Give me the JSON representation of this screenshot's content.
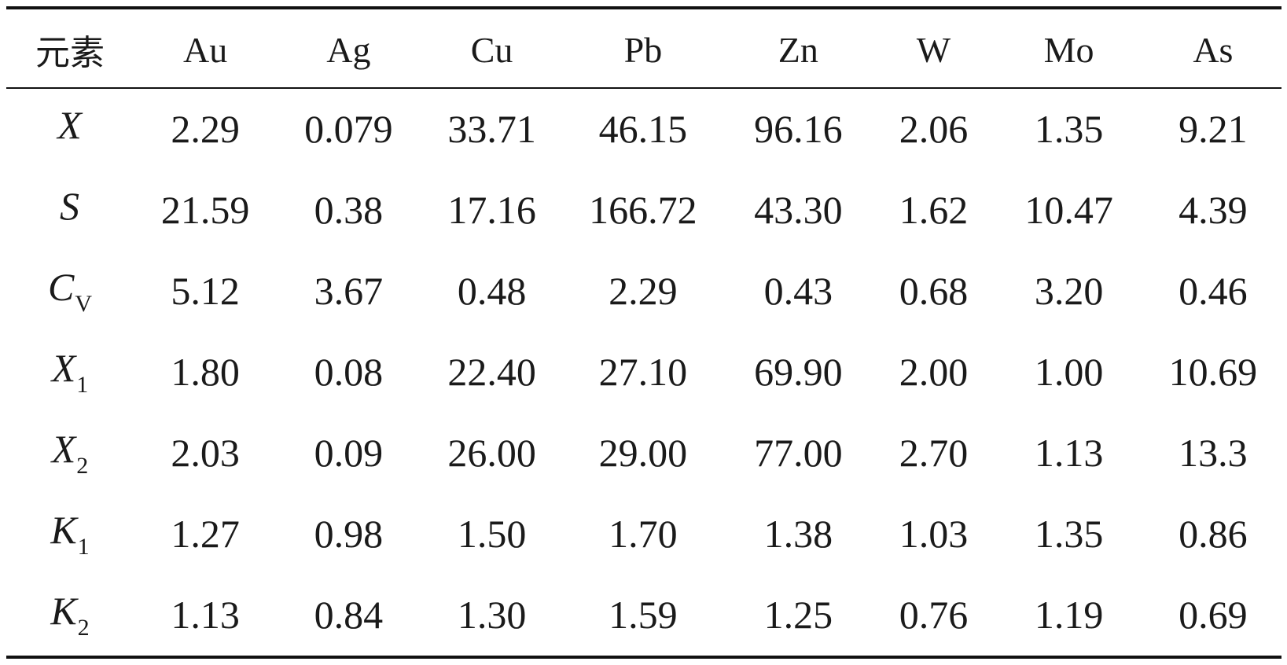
{
  "table": {
    "header": {
      "corner": "元素",
      "columns": [
        "Au",
        "Ag",
        "Cu",
        "Pb",
        "Zn",
        "W",
        "Mo",
        "As"
      ]
    },
    "rows": [
      {
        "label": "X",
        "sub": "",
        "values": [
          "2.29",
          "0.079",
          "33.71",
          "46.15",
          "96.16",
          "2.06",
          "1.35",
          "9.21"
        ]
      },
      {
        "label": "S",
        "sub": "",
        "values": [
          "21.59",
          "0.38",
          "17.16",
          "166.72",
          "43.30",
          "1.62",
          "10.47",
          "4.39"
        ]
      },
      {
        "label": "C",
        "sub": "V",
        "values": [
          "5.12",
          "3.67",
          "0.48",
          "2.29",
          "0.43",
          "0.68",
          "3.20",
          "0.46"
        ]
      },
      {
        "label": "X",
        "sub": "1",
        "values": [
          "1.80",
          "0.08",
          "22.40",
          "27.10",
          "69.90",
          "2.00",
          "1.00",
          "10.69"
        ]
      },
      {
        "label": "X",
        "sub": "2",
        "values": [
          "2.03",
          "0.09",
          "26.00",
          "29.00",
          "77.00",
          "2.70",
          "1.13",
          "13.3"
        ]
      },
      {
        "label": "K",
        "sub": "1",
        "values": [
          "1.27",
          "0.98",
          "1.50",
          "1.70",
          "1.38",
          "1.03",
          "1.35",
          "0.86"
        ]
      },
      {
        "label": "K",
        "sub": "2",
        "values": [
          "1.13",
          "0.84",
          "1.30",
          "1.59",
          "1.25",
          "0.76",
          "1.19",
          "0.69"
        ]
      }
    ]
  }
}
